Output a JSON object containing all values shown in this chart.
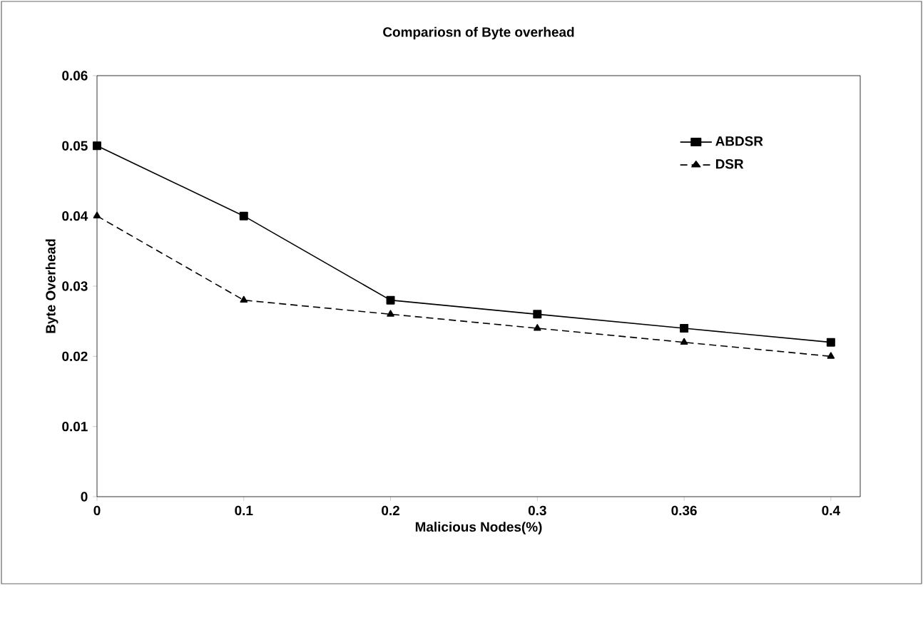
{
  "chart_data": {
    "type": "line",
    "title": "Compariosn of Byte overhead",
    "xlabel": "Malicious Nodes(%)",
    "ylabel": "Byte Overhead",
    "categories": [
      "0",
      "0.1",
      "0.2",
      "0.3",
      "0.36",
      "0.4"
    ],
    "series": [
      {
        "name": "ABDSR",
        "color": "#000000",
        "marker": "square",
        "line_style": "solid",
        "values": [
          0.05,
          0.04,
          0.028,
          0.026,
          0.024,
          0.022
        ]
      },
      {
        "name": "DSR",
        "color": "#000000",
        "marker": "triangle",
        "line_style": "dashed",
        "values": [
          0.04,
          0.028,
          0.026,
          0.024,
          0.022,
          0.02
        ]
      }
    ],
    "ylim": [
      0,
      0.06
    ],
    "yticks": [
      0,
      0.01,
      0.02,
      0.03,
      0.04,
      0.05,
      0.06
    ],
    "grid": false,
    "legend": "top right"
  }
}
